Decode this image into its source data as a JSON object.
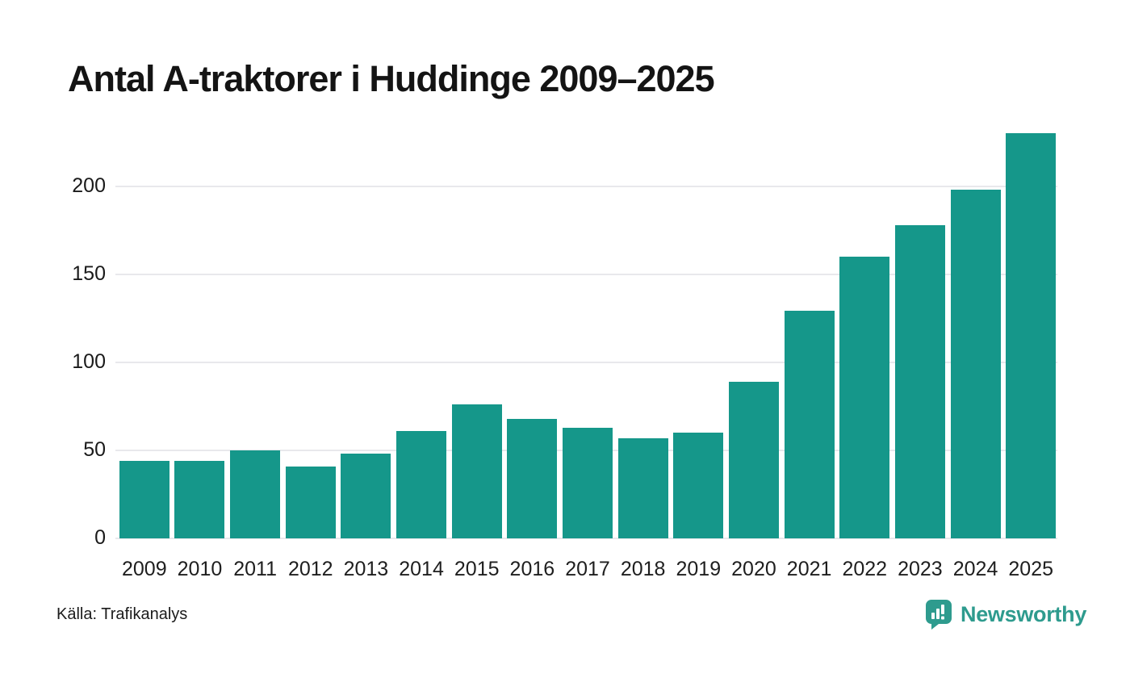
{
  "title": "Antal A-traktorer i Huddinge 2009–2025",
  "source": "Källa: Trafikanalys",
  "branding": {
    "name": "Newsworthy",
    "logo_icon": "speech-bubble-bar-chart-icon"
  },
  "colors": {
    "bar": "#15978a",
    "gridline": "#e8e8ec",
    "brand_teal": "#2e9b8e",
    "logo_bubble": "#2e9b8e",
    "title_text": "#141414",
    "axis_text": "#1a1a1a",
    "background": "#ffffff"
  },
  "chart_data": {
    "type": "bar",
    "title": "Antal A-traktorer i Huddinge 2009–2025",
    "categories": [
      "2009",
      "2010",
      "2011",
      "2012",
      "2013",
      "2014",
      "2015",
      "2016",
      "2017",
      "2018",
      "2019",
      "2020",
      "2021",
      "2022",
      "2023",
      "2024",
      "2025"
    ],
    "values": [
      44,
      44,
      50,
      41,
      48,
      61,
      76,
      68,
      63,
      57,
      60,
      89,
      129,
      160,
      178,
      198,
      230
    ],
    "xlabel": "",
    "ylabel": "",
    "ylim": [
      0,
      232
    ],
    "yticks": [
      0,
      50,
      100,
      150,
      200
    ],
    "grid": true,
    "legend": false,
    "bar_color": "#15978a"
  }
}
